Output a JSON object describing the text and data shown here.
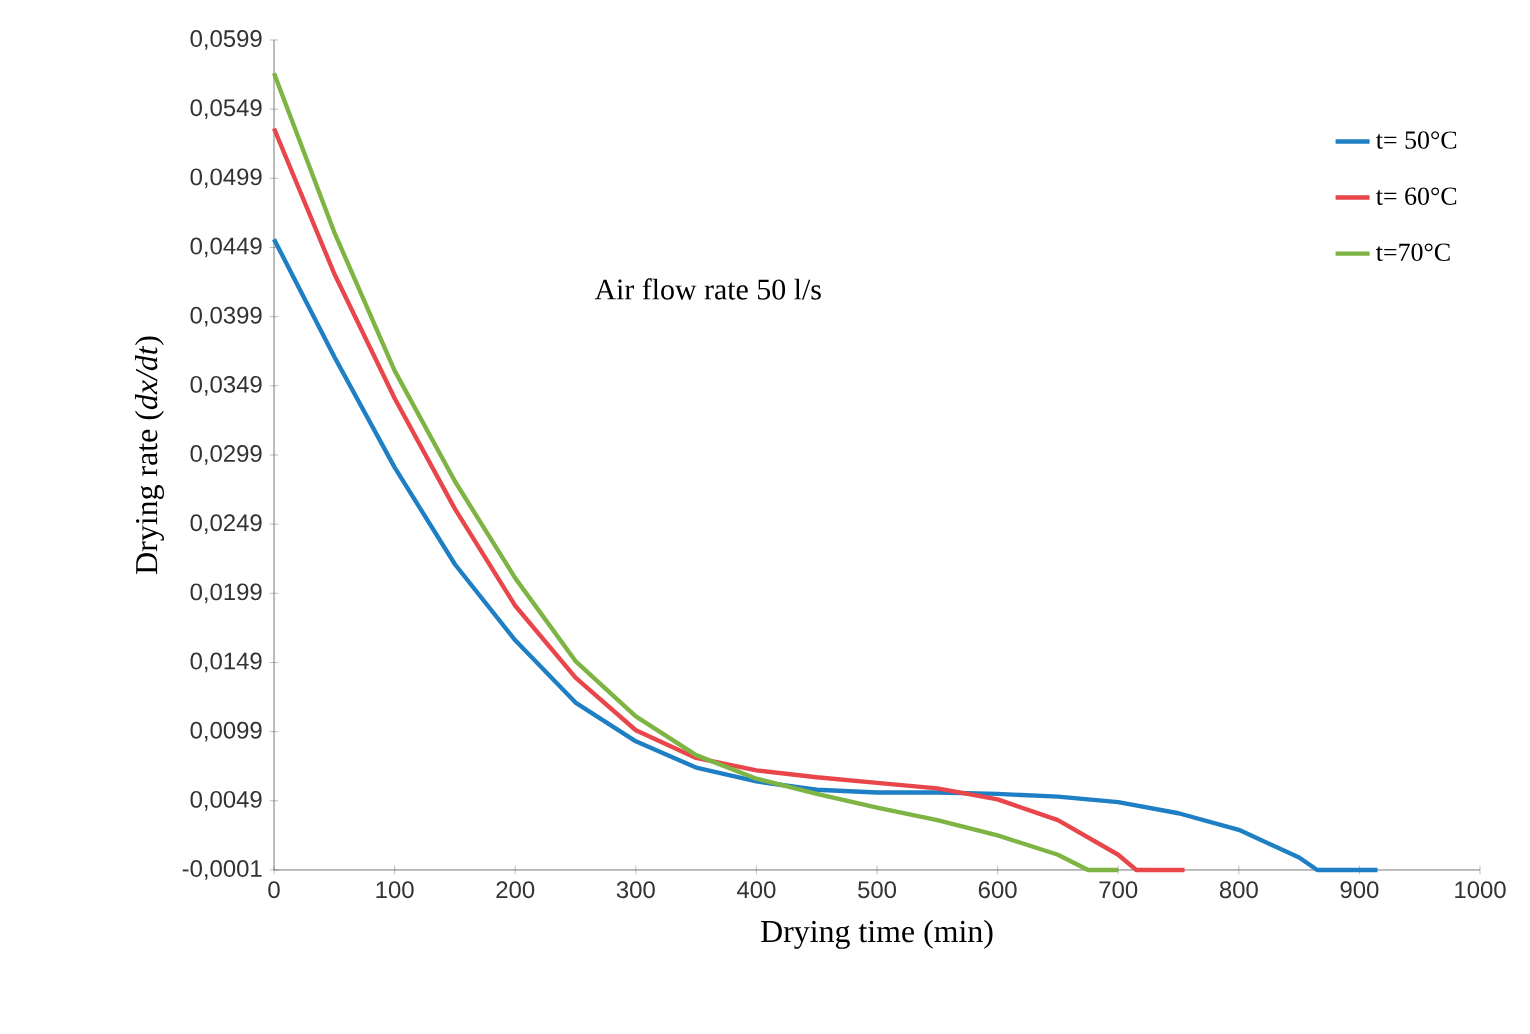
{
  "chart_data": {
    "type": "line",
    "xlabel": "Drying time (min)",
    "ylabel": "Drying rate (*dx/dt*)",
    "annotations": [
      "Air flow rate 50 l/s"
    ],
    "xlim": [
      0,
      1000
    ],
    "xticks": [
      0,
      100,
      200,
      300,
      400,
      500,
      600,
      700,
      800,
      900,
      1000
    ],
    "ylim": [
      -0.0001,
      0.0599
    ],
    "yticks": [
      {
        "value": -0.0001,
        "label": "-0,0001"
      },
      {
        "value": 0.0049,
        "label": "0,0049"
      },
      {
        "value": 0.0099,
        "label": "0,0099"
      },
      {
        "value": 0.0149,
        "label": "0,0149"
      },
      {
        "value": 0.0199,
        "label": "0,0199"
      },
      {
        "value": 0.0249,
        "label": "0,0249"
      },
      {
        "value": 0.0299,
        "label": "0,0299"
      },
      {
        "value": 0.0349,
        "label": "0,0349"
      },
      {
        "value": 0.0399,
        "label": "0,0399"
      },
      {
        "value": 0.0449,
        "label": "0,0449"
      },
      {
        "value": 0.0499,
        "label": "0,0499"
      },
      {
        "value": 0.0549,
        "label": "0,0549"
      },
      {
        "value": 0.0599,
        "label": "0,0599"
      }
    ],
    "grid": false,
    "legend": "top right",
    "marker": "none",
    "line_style": "solid",
    "series": [
      {
        "name": "t= 50°C",
        "color": "#1f7fc4",
        "x": [
          0,
          50,
          100,
          150,
          200,
          250,
          300,
          350,
          400,
          450,
          500,
          550,
          600,
          650,
          700,
          750,
          800,
          850,
          865,
          915
        ],
        "values": [
          0.0455,
          0.037,
          0.029,
          0.022,
          0.0165,
          0.012,
          0.0092,
          0.0073,
          0.0063,
          0.0057,
          0.0055,
          0.0055,
          0.0054,
          0.0052,
          0.0048,
          0.004,
          0.0028,
          0.0008,
          -0.0001,
          -0.0001
        ]
      },
      {
        "name": "t= 60°C",
        "color": "#e8464a",
        "x": [
          0,
          50,
          100,
          150,
          200,
          250,
          300,
          350,
          400,
          450,
          500,
          550,
          600,
          650,
          700,
          715,
          755
        ],
        "values": [
          0.0535,
          0.043,
          0.034,
          0.026,
          0.019,
          0.0138,
          0.01,
          0.008,
          0.0071,
          0.0066,
          0.0062,
          0.0058,
          0.005,
          0.0035,
          0.001,
          -0.0001,
          -0.0001
        ]
      },
      {
        "name": "t=70°C",
        "color": "#7db443",
        "x": [
          0,
          50,
          100,
          150,
          200,
          250,
          300,
          350,
          400,
          450,
          500,
          550,
          600,
          650,
          675,
          700
        ],
        "values": [
          0.0575,
          0.046,
          0.036,
          0.028,
          0.021,
          0.015,
          0.011,
          0.0082,
          0.0065,
          0.0054,
          0.0044,
          0.0035,
          0.0024,
          0.001,
          -0.0001,
          -0.0001
        ]
      }
    ]
  }
}
